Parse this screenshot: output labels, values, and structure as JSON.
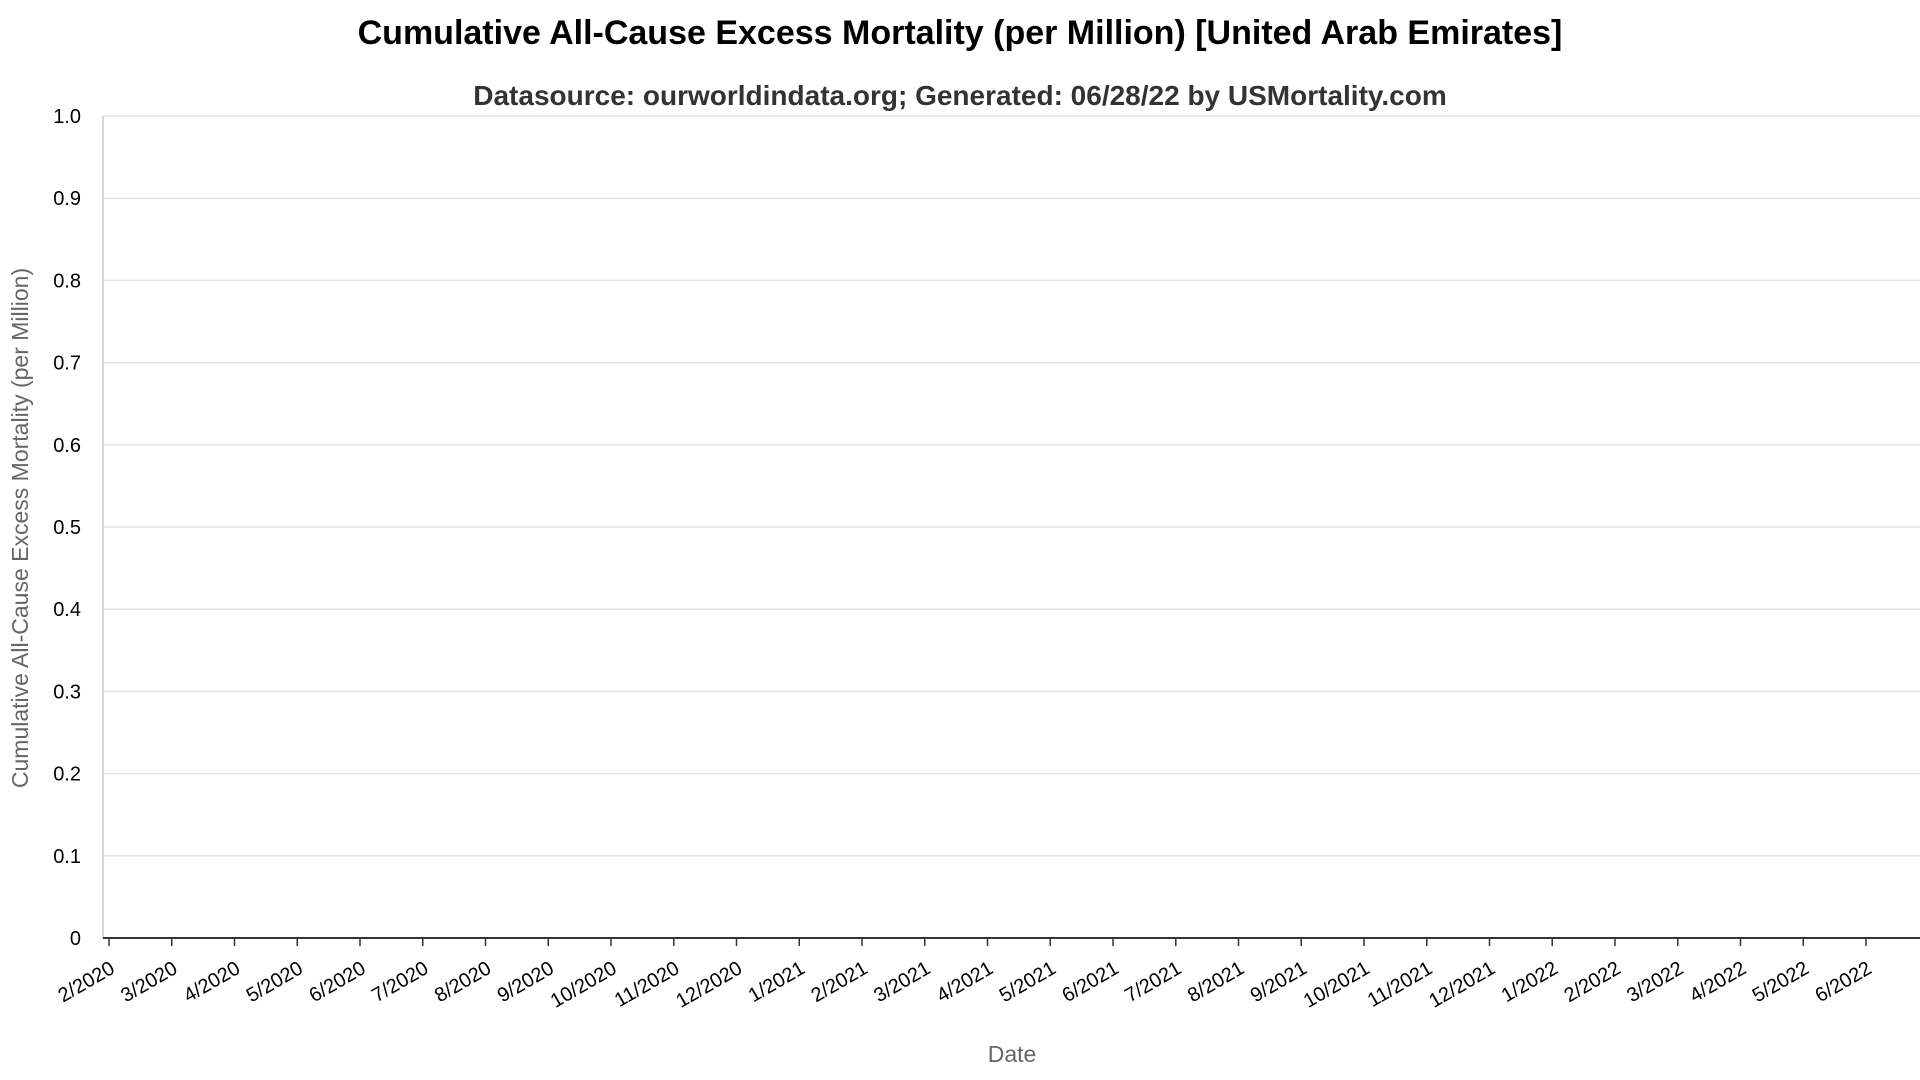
{
  "chart_data": {
    "type": "line",
    "title": "Cumulative All-Cause Excess Mortality (per Million) [United Arab Emirates]",
    "subtitle": "Datasource: ourworldindata.org; Generated: 06/28/22 by USMortality.com",
    "xlabel": "Date",
    "ylabel": "Cumulative All-Cause Excess Mortality (per Million)",
    "ylim": [
      0,
      1
    ],
    "yticks": [
      "0",
      "0.1",
      "0.2",
      "0.3",
      "0.4",
      "0.5",
      "0.6",
      "0.7",
      "0.8",
      "0.9",
      "1.0"
    ],
    "xticks": [
      "2/2020",
      "3/2020",
      "4/2020",
      "5/2020",
      "6/2020",
      "7/2020",
      "8/2020",
      "9/2020",
      "10/2020",
      "11/2020",
      "12/2020",
      "1/2021",
      "2/2021",
      "3/2021",
      "4/2021",
      "5/2021",
      "6/2021",
      "7/2021",
      "8/2021",
      "9/2021",
      "10/2021",
      "11/2021",
      "12/2021",
      "1/2022",
      "2/2022",
      "3/2022",
      "4/2022",
      "5/2022",
      "6/2022"
    ],
    "grid": true,
    "series": []
  }
}
